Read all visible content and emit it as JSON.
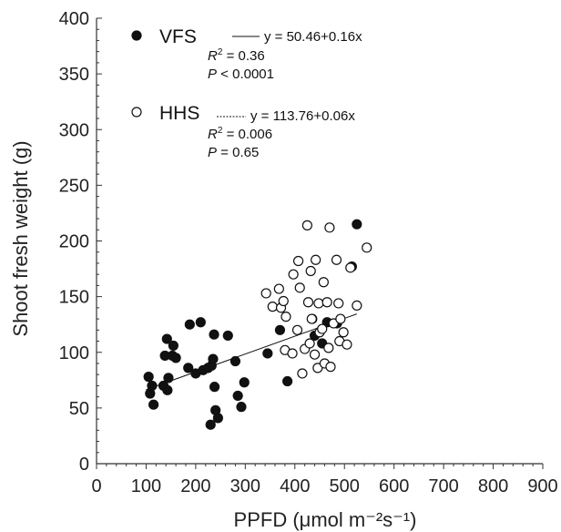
{
  "chart_data": {
    "type": "scatter",
    "xlabel": "PPFD (μmol m⁻²s⁻¹)",
    "ylabel": "Shoot fresh weight (g)",
    "xlim": [
      0,
      900
    ],
    "ylim": [
      0,
      400
    ],
    "xticks": [
      "0",
      "100",
      "200",
      "300",
      "400",
      "500",
      "600",
      "700",
      "800",
      "900"
    ],
    "yticks": [
      "0",
      "50",
      "100",
      "150",
      "200",
      "250",
      "300",
      "350",
      "400"
    ],
    "grid": false,
    "legend_position": "top-left",
    "series": [
      {
        "name": "VFS",
        "marker": "filled-circle",
        "color": "#111111",
        "equation": "y = 50.46+0.16x",
        "r2_label": "R",
        "r2_value": " = 0.36",
        "p_label": "P",
        "p_value": " < 0.0001",
        "line_style": "solid",
        "fit": {
          "intercept": 50.46,
          "slope": 0.16,
          "x_range": [
            100,
            525
          ]
        },
        "points": [
          [
            105,
            78
          ],
          [
            108,
            63
          ],
          [
            112,
            70
          ],
          [
            115,
            53
          ],
          [
            135,
            70
          ],
          [
            138,
            97
          ],
          [
            142,
            112
          ],
          [
            143,
            66
          ],
          [
            145,
            77
          ],
          [
            153,
            97
          ],
          [
            155,
            106
          ],
          [
            160,
            95
          ],
          [
            185,
            86
          ],
          [
            188,
            125
          ],
          [
            200,
            81
          ],
          [
            210,
            127
          ],
          [
            215,
            84
          ],
          [
            225,
            86
          ],
          [
            230,
            35
          ],
          [
            232,
            88
          ],
          [
            235,
            94
          ],
          [
            237,
            116
          ],
          [
            238,
            69
          ],
          [
            240,
            48
          ],
          [
            245,
            41
          ],
          [
            265,
            115
          ],
          [
            280,
            92
          ],
          [
            285,
            61
          ],
          [
            292,
            51
          ],
          [
            298,
            73
          ],
          [
            345,
            99
          ],
          [
            370,
            120
          ],
          [
            385,
            74
          ],
          [
            435,
            130
          ],
          [
            440,
            115
          ],
          [
            455,
            108
          ],
          [
            465,
            127
          ],
          [
            485,
            126
          ],
          [
            515,
            177
          ],
          [
            525,
            215
          ]
        ]
      },
      {
        "name": "HHS",
        "marker": "open-circle",
        "color": "#111111",
        "equation": "y = 113.76+0.06x",
        "r2_label": "R",
        "r2_value": " = 0.006",
        "p_label": "P",
        "p_value": " = 0.65",
        "line_style": "dashed",
        "points": [
          [
            342,
            153
          ],
          [
            355,
            141
          ],
          [
            368,
            157
          ],
          [
            372,
            140
          ],
          [
            377,
            146
          ],
          [
            380,
            102
          ],
          [
            382,
            132
          ],
          [
            395,
            99
          ],
          [
            397,
            170
          ],
          [
            405,
            120
          ],
          [
            407,
            182
          ],
          [
            410,
            158
          ],
          [
            415,
            81
          ],
          [
            420,
            103
          ],
          [
            425,
            214
          ],
          [
            427,
            145
          ],
          [
            430,
            108
          ],
          [
            432,
            173
          ],
          [
            434,
            130
          ],
          [
            440,
            98
          ],
          [
            442,
            183
          ],
          [
            446,
            86
          ],
          [
            448,
            144
          ],
          [
            450,
            118
          ],
          [
            455,
            121
          ],
          [
            458,
            163
          ],
          [
            460,
            90
          ],
          [
            465,
            145
          ],
          [
            468,
            104
          ],
          [
            470,
            212
          ],
          [
            472,
            87
          ],
          [
            478,
            126
          ],
          [
            484,
            183
          ],
          [
            488,
            144
          ],
          [
            490,
            110
          ],
          [
            492,
            130
          ],
          [
            498,
            118
          ],
          [
            505,
            107
          ],
          [
            512,
            176
          ],
          [
            525,
            142
          ],
          [
            545,
            194
          ]
        ]
      }
    ]
  }
}
